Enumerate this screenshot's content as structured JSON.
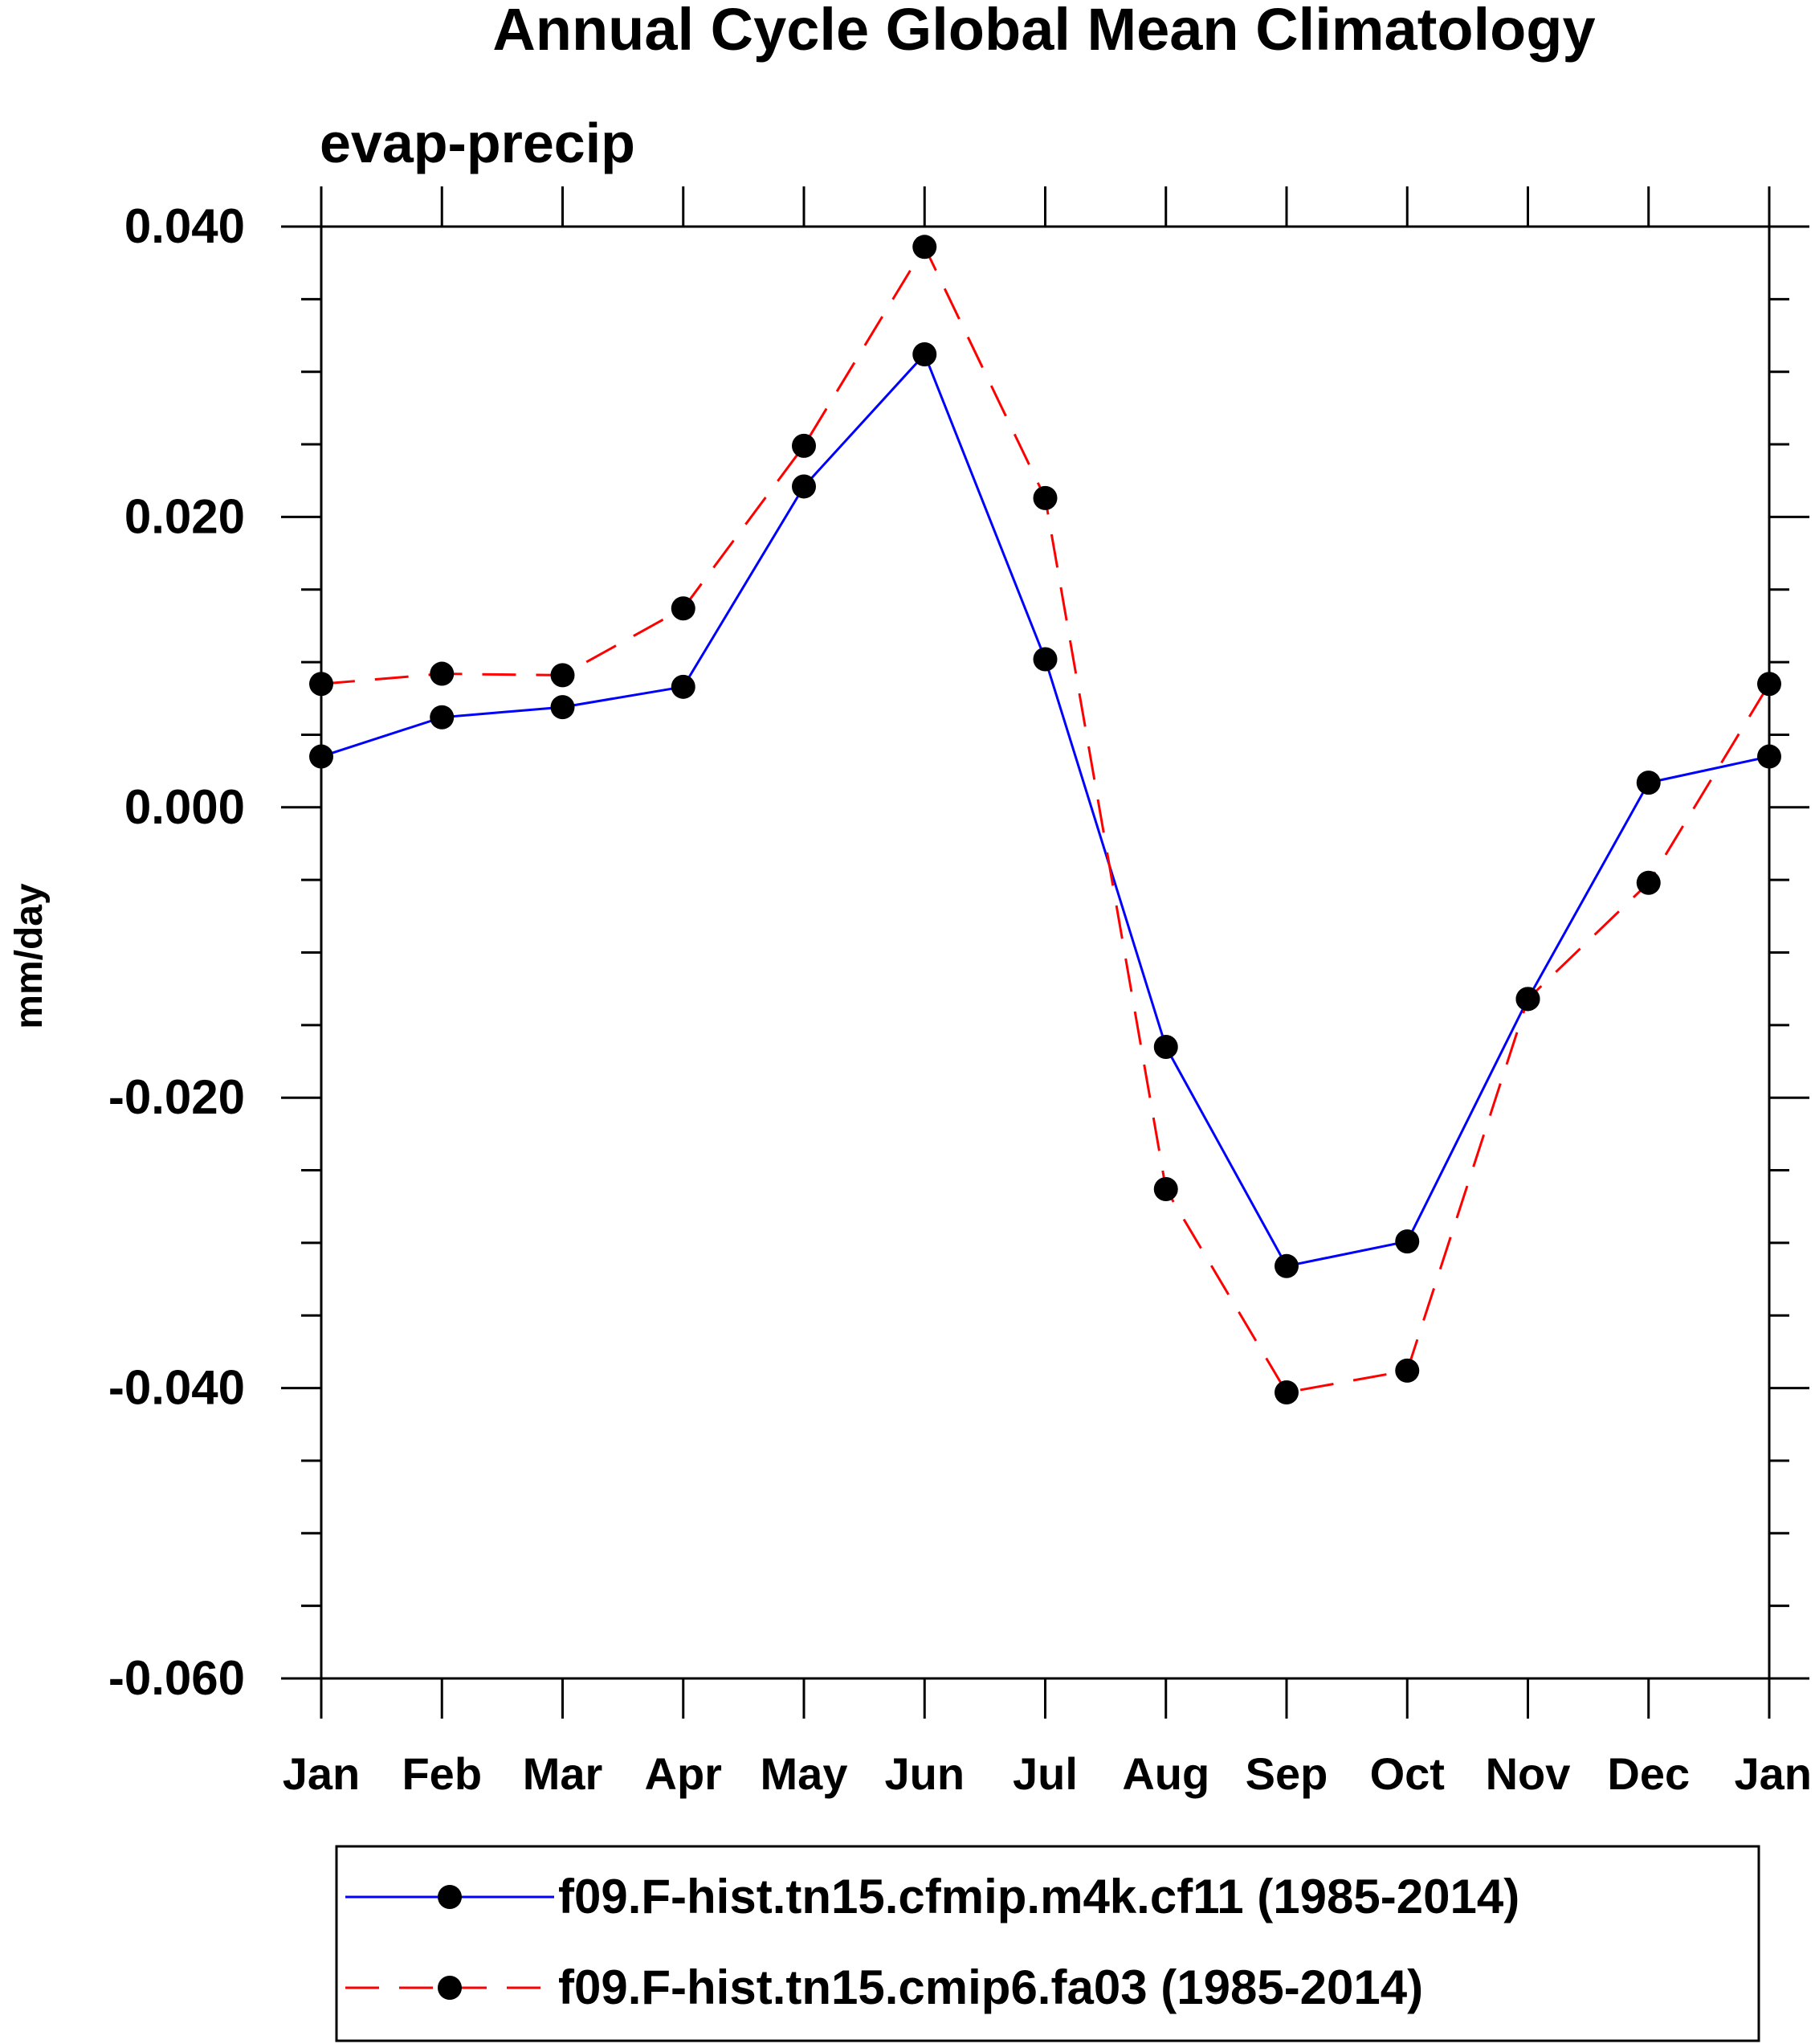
{
  "chart_data": {
    "type": "line",
    "title": "Annual Cycle Global Mean Climatology",
    "subtitle": "evap-precip",
    "xlabel": "",
    "ylabel": "mm/day",
    "categories": [
      "Jan",
      "Feb",
      "Mar",
      "Apr",
      "May",
      "Jun",
      "Jul",
      "Aug",
      "Sep",
      "Oct",
      "Nov",
      "Dec",
      "Jan"
    ],
    "ylim": [
      -0.06,
      0.04
    ],
    "yticks": [
      0.04,
      0.02,
      0.0,
      -0.02,
      -0.04,
      -0.06
    ],
    "ytick_labels": [
      "0.040",
      "0.020",
      "0.000",
      "-0.020",
      "-0.040",
      "-0.060"
    ],
    "y_minor_step": 0.005,
    "grid": false,
    "legend_position": "bottom",
    "series": [
      {
        "name": "f09.F-hist.tn15.cfmip.m4k.cf11 (1985-2014)",
        "color": "#0000ff",
        "line_style": "solid",
        "marker": "filled-circle",
        "values": [
          0.0035,
          0.0062,
          0.0069,
          0.0083,
          0.0221,
          0.0312,
          0.0102,
          -0.0165,
          -0.0316,
          -0.0299,
          -0.0132,
          0.0017,
          0.0035
        ]
      },
      {
        "name": "f09.F-hist.tn15.cmip6.fa03 (1985-2014)",
        "color": "#ff0000",
        "line_style": "dashed",
        "marker": "filled-circle",
        "values": [
          0.0085,
          0.0092,
          0.0091,
          0.0137,
          0.0249,
          0.0386,
          0.0213,
          -0.0263,
          -0.0403,
          -0.0388,
          -0.0132,
          -0.0052,
          0.0085
        ]
      }
    ]
  }
}
